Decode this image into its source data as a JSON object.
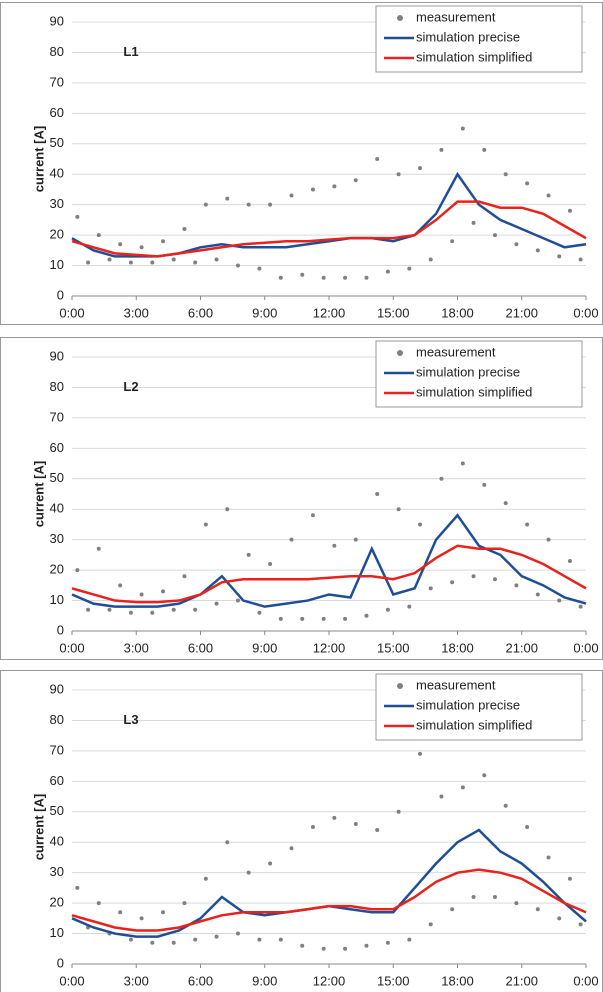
{
  "chart_data": [
    {
      "type": "line",
      "label": "L1",
      "y_label": "current [A]",
      "xlim": [
        0,
        24
      ],
      "ylim": [
        0,
        90
      ],
      "xticks": [
        {
          "value": 0,
          "label": "0:00"
        },
        {
          "value": 3,
          "label": "3:00"
        },
        {
          "value": 6,
          "label": "6:00"
        },
        {
          "value": 9,
          "label": "9:00"
        },
        {
          "value": 12,
          "label": "12:00"
        },
        {
          "value": 15,
          "label": "15:00"
        },
        {
          "value": 18,
          "label": "18:00"
        },
        {
          "value": 21,
          "label": "21:00"
        },
        {
          "value": 24,
          "label": "0:00"
        }
      ],
      "yticks": [
        0,
        10,
        20,
        30,
        40,
        50,
        60,
        70,
        80,
        90
      ],
      "grid": true,
      "x": [
        0,
        1,
        2,
        3,
        4,
        5,
        6,
        7,
        8,
        9,
        10,
        11,
        12,
        13,
        14,
        15,
        16,
        17,
        18,
        19,
        20,
        21,
        22,
        23,
        24
      ],
      "series": [
        {
          "name": "measurement",
          "type": "scatter",
          "color": "#808080",
          "x": [
            0.25,
            0.75,
            1.25,
            1.75,
            2.25,
            2.75,
            3.25,
            3.75,
            4.25,
            4.75,
            5.25,
            5.75,
            6.25,
            6.75,
            7.25,
            7.75,
            8.25,
            8.75,
            9.25,
            9.75,
            10.25,
            10.75,
            11.25,
            11.75,
            12.25,
            12.75,
            13.25,
            13.75,
            14.25,
            14.75,
            15.25,
            15.75,
            16.25,
            16.75,
            17.25,
            17.75,
            18.25,
            18.75,
            19.25,
            19.75,
            20.25,
            20.75,
            21.25,
            21.75,
            22.25,
            22.75,
            23.25,
            23.75
          ],
          "values": [
            26,
            11,
            20,
            12,
            17,
            11,
            16,
            11,
            18,
            12,
            22,
            11,
            30,
            12,
            32,
            10,
            30,
            9,
            30,
            6,
            33,
            7,
            35,
            6,
            36,
            6,
            38,
            6,
            45,
            8,
            40,
            9,
            42,
            12,
            48,
            18,
            55,
            24,
            48,
            20,
            40,
            17,
            37,
            15,
            33,
            13,
            28,
            12
          ]
        },
        {
          "name": "simulation precise",
          "type": "line",
          "color": "#1f4e96",
          "values": [
            19,
            15,
            13,
            13,
            13,
            14,
            16,
            17,
            16,
            16,
            16,
            17,
            18,
            19,
            19,
            18,
            20,
            27,
            40,
            30,
            25,
            22,
            19,
            16,
            17
          ]
        },
        {
          "name": "simulation simplified",
          "type": "line",
          "color": "#e8221c",
          "values": [
            18,
            16,
            14,
            13.5,
            13,
            14,
            15,
            16,
            17,
            17.5,
            18,
            18,
            18.5,
            19,
            19,
            19,
            20,
            25,
            31,
            31,
            29,
            29,
            27,
            23,
            19
          ]
        }
      ]
    },
    {
      "type": "line",
      "label": "L2",
      "y_label": "current [A]",
      "xlim": [
        0,
        24
      ],
      "ylim": [
        0,
        90
      ],
      "xticks": [
        {
          "value": 0,
          "label": "0:00"
        },
        {
          "value": 3,
          "label": "3:00"
        },
        {
          "value": 6,
          "label": "6:00"
        },
        {
          "value": 9,
          "label": "9:00"
        },
        {
          "value": 12,
          "label": "12:00"
        },
        {
          "value": 15,
          "label": "15:00"
        },
        {
          "value": 18,
          "label": "18:00"
        },
        {
          "value": 21,
          "label": "21:00"
        },
        {
          "value": 24,
          "label": "0:00"
        }
      ],
      "yticks": [
        0,
        10,
        20,
        30,
        40,
        50,
        60,
        70,
        80,
        90
      ],
      "grid": true,
      "x": [
        0,
        1,
        2,
        3,
        4,
        5,
        6,
        7,
        8,
        9,
        10,
        11,
        12,
        13,
        14,
        15,
        16,
        17,
        18,
        19,
        20,
        21,
        22,
        23,
        24
      ],
      "series": [
        {
          "name": "measurement",
          "type": "scatter",
          "color": "#808080",
          "x": [
            0.25,
            0.75,
            1.25,
            1.75,
            2.25,
            2.75,
            3.25,
            3.75,
            4.25,
            4.75,
            5.25,
            5.75,
            6.25,
            6.75,
            7.25,
            7.75,
            8.25,
            8.75,
            9.25,
            9.75,
            10.25,
            10.75,
            11.25,
            11.75,
            12.25,
            12.75,
            13.25,
            13.75,
            14.25,
            14.75,
            15.25,
            15.75,
            16.25,
            16.75,
            17.25,
            17.75,
            18.25,
            18.75,
            19.25,
            19.75,
            20.25,
            20.75,
            21.25,
            21.75,
            22.25,
            22.75,
            23.25,
            23.75
          ],
          "values": [
            20,
            7,
            27,
            7,
            15,
            6,
            12,
            6,
            13,
            7,
            18,
            7,
            35,
            9,
            40,
            10,
            25,
            6,
            22,
            4,
            30,
            4,
            38,
            4,
            28,
            4,
            30,
            5,
            45,
            7,
            40,
            8,
            35,
            14,
            50,
            16,
            55,
            18,
            48,
            17,
            42,
            15,
            35,
            12,
            30,
            10,
            23,
            8
          ]
        },
        {
          "name": "simulation precise",
          "type": "line",
          "color": "#1f4e96",
          "values": [
            12,
            9,
            8,
            8,
            8,
            9,
            12,
            18,
            10,
            8,
            9,
            10,
            12,
            11,
            27,
            12,
            14,
            30,
            38,
            28,
            25,
            18,
            15,
            11,
            9
          ]
        },
        {
          "name": "simulation simplified",
          "type": "line",
          "color": "#e8221c",
          "values": [
            14,
            12,
            10,
            9.5,
            9.5,
            10,
            12,
            16,
            17,
            17,
            17,
            17,
            17.5,
            18,
            18,
            17,
            19,
            24,
            28,
            27,
            27,
            25,
            22,
            18,
            14
          ]
        }
      ]
    },
    {
      "type": "line",
      "label": "L3",
      "y_label": "current [A]",
      "xlim": [
        0,
        24
      ],
      "ylim": [
        0,
        90
      ],
      "xticks": [
        {
          "value": 0,
          "label": "0:00"
        },
        {
          "value": 3,
          "label": "3:00"
        },
        {
          "value": 6,
          "label": "6:00"
        },
        {
          "value": 9,
          "label": "9:00"
        },
        {
          "value": 12,
          "label": "12:00"
        },
        {
          "value": 15,
          "label": "15:00"
        },
        {
          "value": 18,
          "label": "18:00"
        },
        {
          "value": 21,
          "label": "21:00"
        },
        {
          "value": 24,
          "label": "0:00"
        }
      ],
      "yticks": [
        0,
        10,
        20,
        30,
        40,
        50,
        60,
        70,
        80,
        90
      ],
      "grid": true,
      "x": [
        0,
        1,
        2,
        3,
        4,
        5,
        6,
        7,
        8,
        9,
        10,
        11,
        12,
        13,
        14,
        15,
        16,
        17,
        18,
        19,
        20,
        21,
        22,
        23,
        24
      ],
      "series": [
        {
          "name": "measurement",
          "type": "scatter",
          "color": "#808080",
          "x": [
            0.25,
            0.75,
            1.25,
            1.75,
            2.25,
            2.75,
            3.25,
            3.75,
            4.25,
            4.75,
            5.25,
            5.75,
            6.25,
            6.75,
            7.25,
            7.75,
            8.25,
            8.75,
            9.25,
            9.75,
            10.25,
            10.75,
            11.25,
            11.75,
            12.25,
            12.75,
            13.25,
            13.75,
            14.25,
            14.75,
            15.25,
            15.75,
            16.25,
            16.75,
            17.25,
            17.75,
            18.25,
            18.75,
            19.25,
            19.75,
            20.25,
            20.75,
            21.25,
            21.75,
            22.25,
            22.75,
            23.25,
            23.75
          ],
          "values": [
            25,
            12,
            20,
            10,
            17,
            8,
            15,
            7,
            17,
            7,
            20,
            8,
            28,
            9,
            40,
            10,
            30,
            8,
            33,
            8,
            38,
            6,
            45,
            5,
            48,
            5,
            46,
            6,
            44,
            7,
            50,
            8,
            69,
            13,
            55,
            18,
            58,
            22,
            62,
            22,
            52,
            20,
            45,
            18,
            35,
            15,
            28,
            13
          ]
        },
        {
          "name": "simulation precise",
          "type": "line",
          "color": "#1f4e96",
          "values": [
            15,
            12,
            10,
            9,
            9,
            11,
            15,
            22,
            17,
            16,
            17,
            18,
            19,
            18,
            17,
            17,
            25,
            33,
            40,
            44,
            37,
            33,
            27,
            20,
            14
          ]
        },
        {
          "name": "simulation simplified",
          "type": "line",
          "color": "#e8221c",
          "values": [
            16,
            14,
            12,
            11,
            11,
            12,
            14,
            16,
            17,
            17,
            17,
            18,
            19,
            19,
            18,
            18,
            22,
            27,
            30,
            31,
            30,
            28,
            24,
            20,
            17
          ]
        }
      ]
    }
  ]
}
